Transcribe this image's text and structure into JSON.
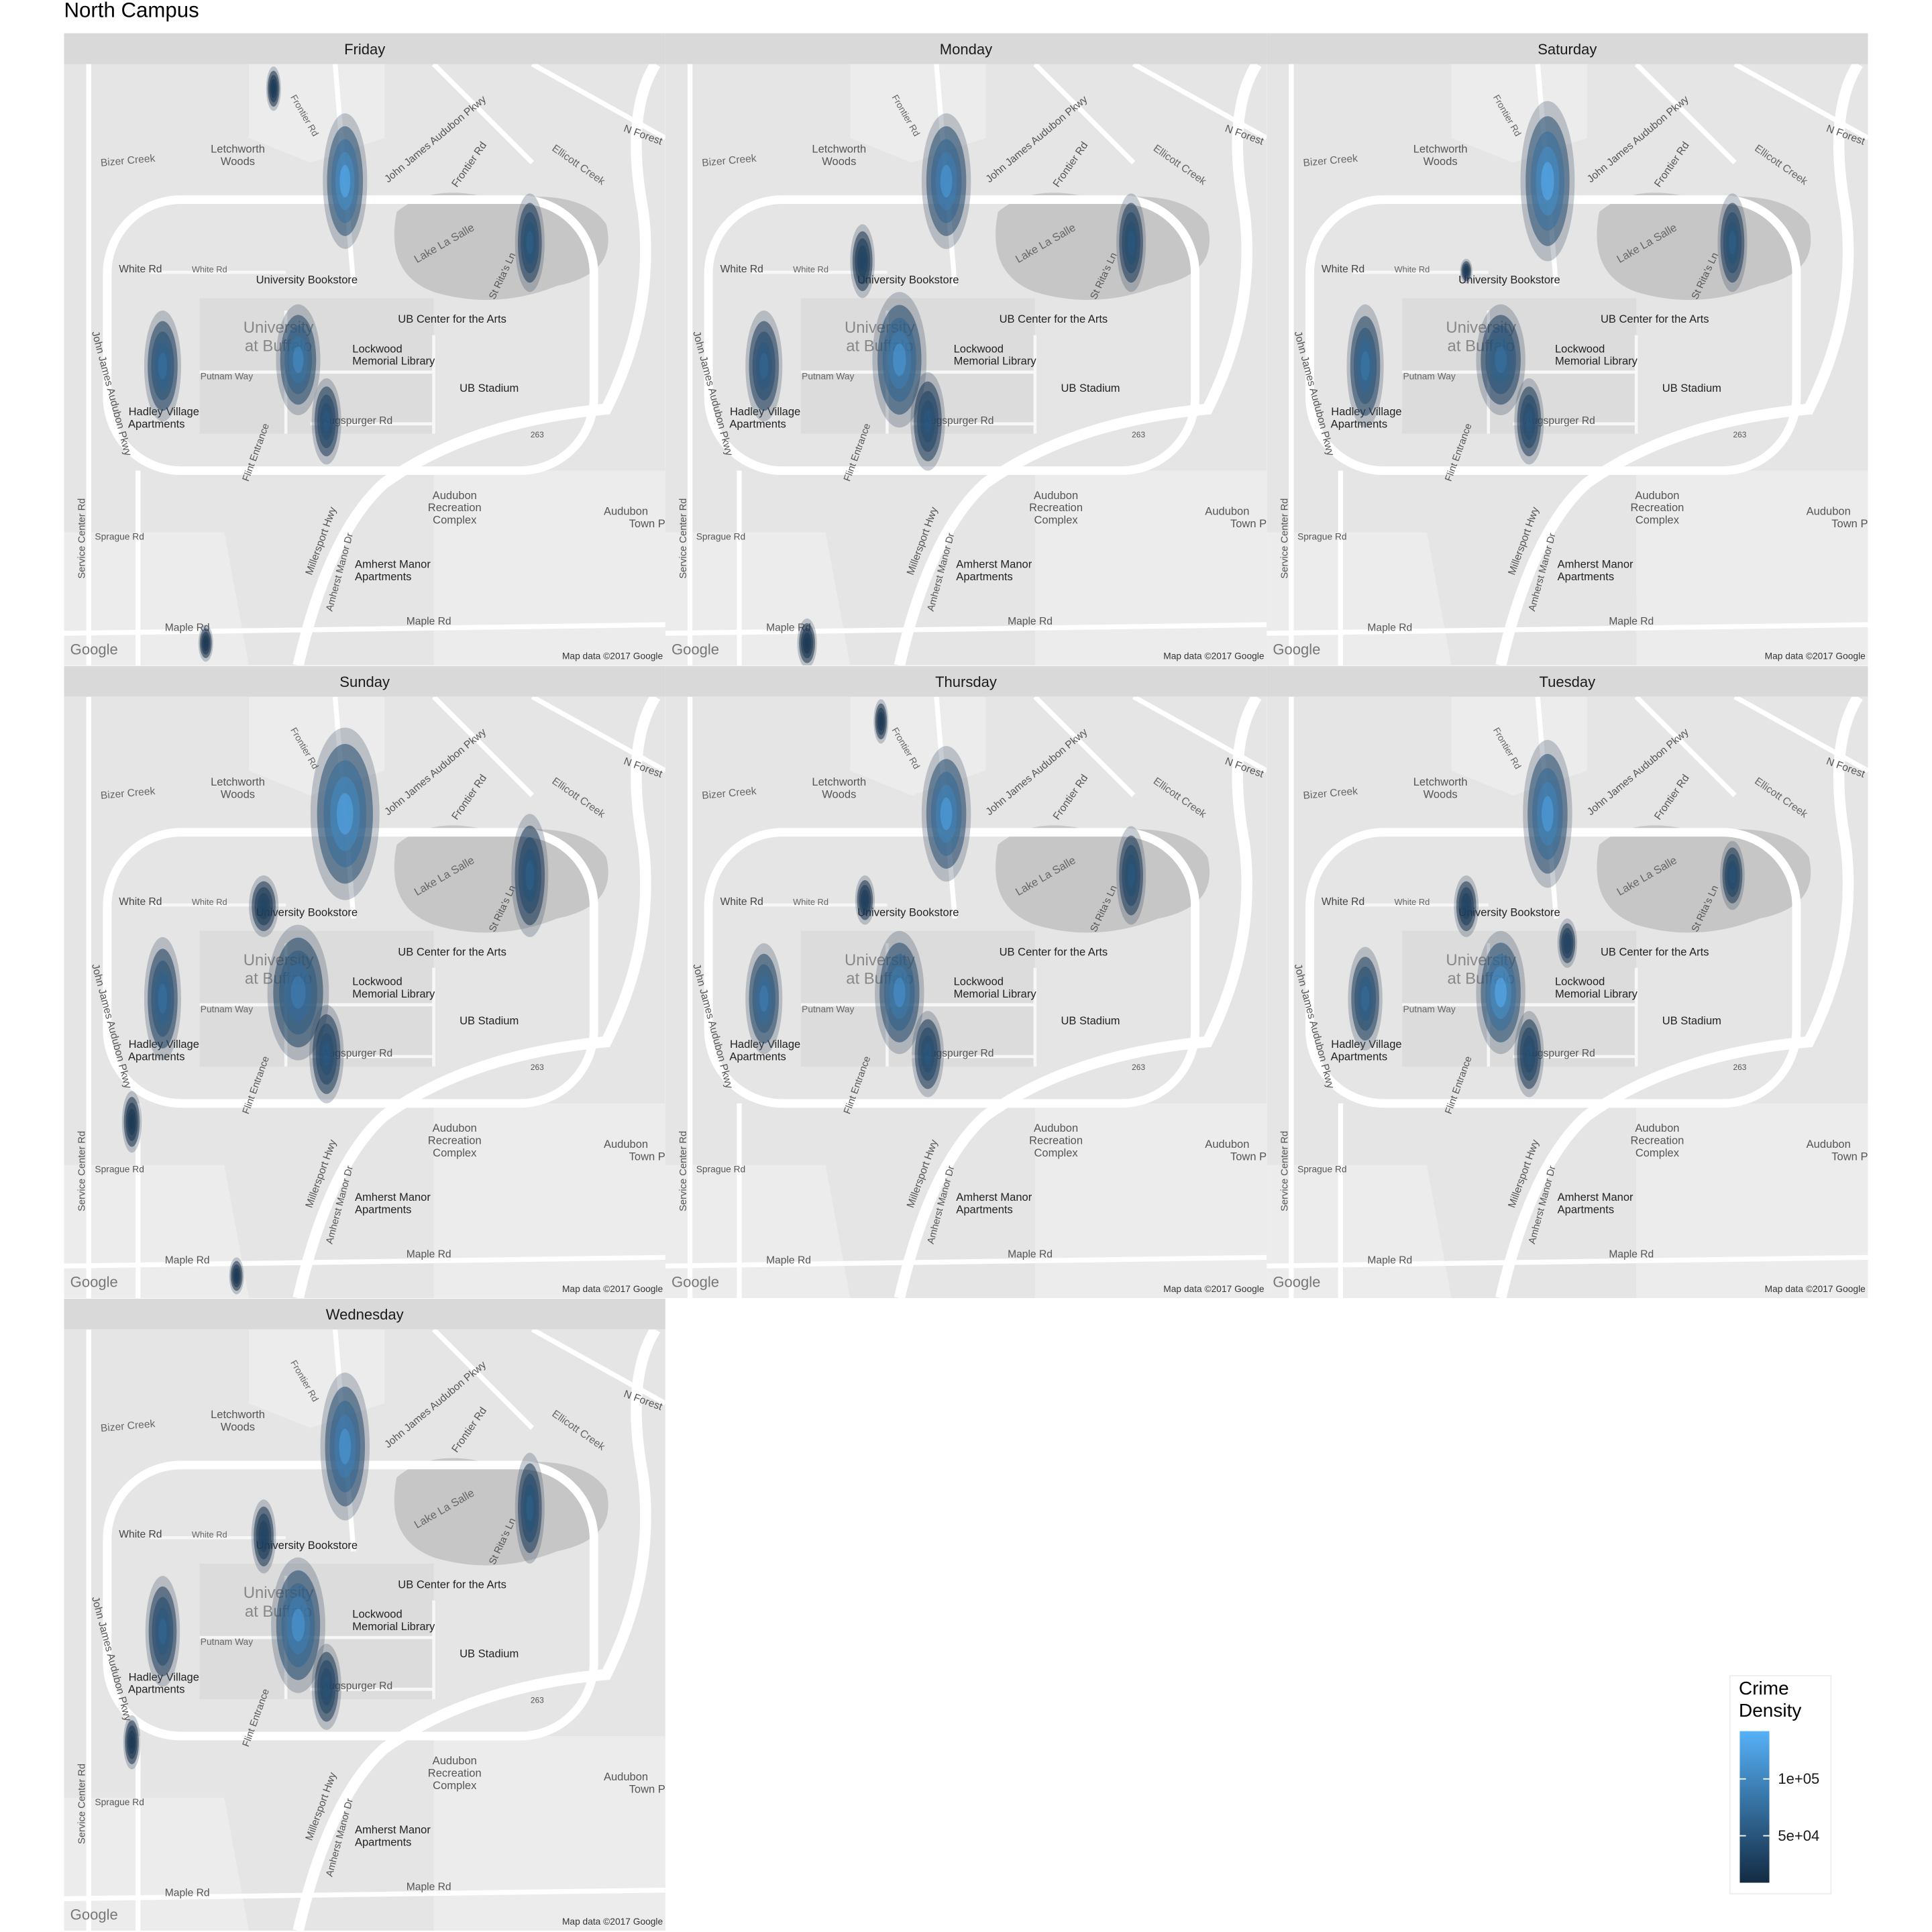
{
  "chart_data": {
    "type": "density_map",
    "title": "North Campus",
    "panels": [
      "Friday",
      "Monday",
      "Saturday",
      "Sunday",
      "Thursday",
      "Tuesday",
      "Wednesday"
    ],
    "legend": {
      "title": "Crime\nDensity",
      "lim": [
        8700,
        142000
      ],
      "colors": [
        "#132b43",
        "#56b1f7"
      ],
      "ticks": [
        {
          "value": 50000,
          "label": "5e+04"
        },
        {
          "value": 100000,
          "label": "1e+05"
        }
      ]
    },
    "map_labels": [
      "Bizer Creek",
      "Letchworth",
      "Woods",
      "John James Audubon Pkwy",
      "Frontier Rd",
      "Frontier Rd",
      "N Forest",
      "Ellicott Creek",
      "Lake La Salle",
      "St Rita's Ln",
      "White Rd",
      "White Rd",
      "University Bookstore",
      "UB Center for the Arts",
      "University",
      "at Buffalo",
      "Lockwood",
      "Memorial Library",
      "Putnam Way",
      "UB Stadium",
      "Hadley Village",
      "Apartments",
      "Augspurger Rd",
      "Flint Entrance",
      "263",
      "Audubon",
      "Recreation",
      "Complex",
      "Service Center Rd",
      "Sprague Rd",
      "Millersport Hwy",
      "Amherst Manor Dr",
      "Amherst Manor",
      "Apartments",
      "Maple Rd",
      "Maple Rd",
      "Google",
      "Map data ©2017 Google",
      "John James Audubon Pkwy",
      "Audubon",
      "Town P"
    ]
  }
}
